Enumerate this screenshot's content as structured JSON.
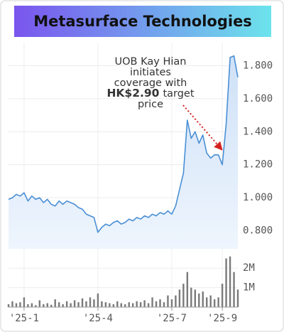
{
  "chart_data": [
    {
      "type": "line",
      "title": "Metasurface Technologies",
      "annotation": [
        "UOB Kay Hian",
        "initiates",
        "coverage with",
        "HK$2.90",
        "target",
        "price"
      ],
      "color": "#4a8fd6",
      "grid": true,
      "ylim": [
        0.69,
        1.94
      ],
      "yticks": [
        {
          "value": 0.8,
          "label": "0.800"
        },
        {
          "value": 1.0,
          "label": "1.000"
        },
        {
          "value": 1.2,
          "label": "1.200"
        },
        {
          "value": 1.4,
          "label": "1.400"
        },
        {
          "value": 1.6,
          "label": "1.600"
        },
        {
          "value": 1.8,
          "label": "1.800"
        }
      ],
      "values": [
        0.99,
        1.0,
        1.02,
        1.01,
        1.03,
        0.98,
        1.01,
        0.99,
        1.0,
        0.97,
        0.99,
        0.96,
        0.95,
        0.98,
        0.96,
        0.98,
        0.97,
        0.96,
        0.94,
        0.93,
        0.9,
        0.89,
        0.88,
        0.79,
        0.82,
        0.84,
        0.83,
        0.85,
        0.86,
        0.84,
        0.85,
        0.87,
        0.86,
        0.88,
        0.87,
        0.89,
        0.88,
        0.9,
        0.89,
        0.91,
        0.9,
        0.92,
        0.9,
        0.95,
        1.05,
        1.15,
        1.47,
        1.36,
        1.4,
        1.33,
        1.38,
        1.27,
        1.24,
        1.26,
        1.26,
        1.2,
        1.45,
        1.85,
        1.86,
        1.73
      ]
    },
    {
      "type": "bar",
      "color": "#7a7a7a",
      "categories": [
        null,
        null,
        null,
        null,
        "'25-1",
        null,
        null,
        null,
        null,
        null,
        null,
        null,
        null,
        null,
        null,
        null,
        null,
        null,
        null,
        null,
        null,
        null,
        null,
        "'25-4",
        null,
        null,
        null,
        null,
        null,
        null,
        null,
        null,
        null,
        null,
        null,
        null,
        null,
        null,
        null,
        null,
        null,
        null,
        "'25-7",
        null,
        null,
        null,
        null,
        null,
        null,
        null,
        null,
        null,
        null,
        null,
        null,
        "'25-9",
        null,
        null,
        null,
        null
      ],
      "ylim": [
        0,
        2700000
      ],
      "yticks": [
        {
          "value": 1000000,
          "label": "1M"
        },
        {
          "value": 2000000,
          "label": "2M"
        }
      ],
      "values": [
        150000,
        300000,
        200000,
        250000,
        500000,
        150000,
        200000,
        100000,
        350000,
        150000,
        200000,
        120000,
        400000,
        250000,
        150000,
        300000,
        200000,
        350000,
        250000,
        450000,
        300000,
        500000,
        400000,
        700000,
        300000,
        250000,
        200000,
        150000,
        300000,
        200000,
        150000,
        250000,
        200000,
        300000,
        250000,
        350000,
        200000,
        500000,
        300000,
        400000,
        250000,
        600000,
        400000,
        600000,
        900000,
        1200000,
        1800000,
        1000000,
        900000,
        700000,
        800000,
        500000,
        600000,
        400000,
        500000,
        1200000,
        2500000,
        2600000,
        1800000,
        900000
      ]
    }
  ]
}
